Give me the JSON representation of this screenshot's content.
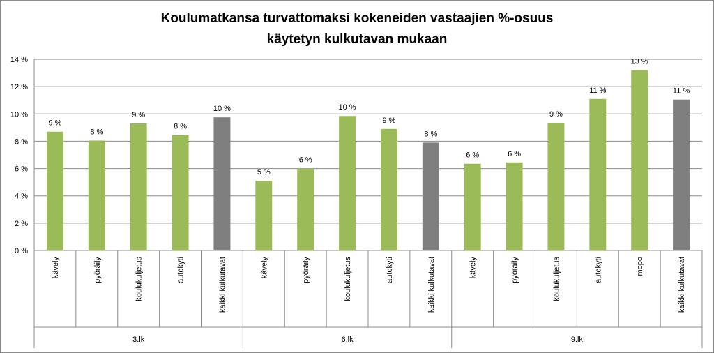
{
  "chart_data": {
    "type": "bar",
    "title_lines": [
      "Koulumatkansa turvattomaksi kokeneiden vastaajien %-osuus",
      "käytetyn kulkutavan mukaan"
    ],
    "xlabel": "",
    "ylabel": "",
    "ylim": [
      0,
      14
    ],
    "y_ticks": [
      "0 %",
      "2 %",
      "4 %",
      "6 %",
      "8 %",
      "10 %",
      "12 %",
      "14 %"
    ],
    "grid": true,
    "legend": "none",
    "colors": {
      "mode": "#9bbb59",
      "all": "#7f7f7f"
    },
    "groups": [
      {
        "name": "3.lk",
        "bars": [
          {
            "category": "kävely",
            "value": 8.7,
            "label": "9 %",
            "kind": "mode"
          },
          {
            "category": "pyöräily",
            "value": 8.05,
            "label": "8 %",
            "kind": "mode"
          },
          {
            "category": "koulukuljetus",
            "value": 9.3,
            "label": "9 %",
            "kind": "mode"
          },
          {
            "category": "autokyti",
            "value": 8.45,
            "label": "8 %",
            "kind": "mode"
          },
          {
            "category": "kaikki kulkutavat",
            "value": 9.75,
            "label": "10 %",
            "kind": "all"
          }
        ]
      },
      {
        "name": "6.lk",
        "bars": [
          {
            "category": "kävely",
            "value": 5.1,
            "label": "5 %",
            "kind": "mode"
          },
          {
            "category": "pyöräily",
            "value": 6.0,
            "label": "6 %",
            "kind": "mode"
          },
          {
            "category": "koulukuljetus",
            "value": 9.85,
            "label": "10 %",
            "kind": "mode"
          },
          {
            "category": "autokyti",
            "value": 8.9,
            "label": "9 %",
            "kind": "mode"
          },
          {
            "category": "kaikki kulkutavat",
            "value": 7.9,
            "label": "8 %",
            "kind": "all"
          }
        ]
      },
      {
        "name": "9.lk",
        "bars": [
          {
            "category": "kävely",
            "value": 6.35,
            "label": "6 %",
            "kind": "mode"
          },
          {
            "category": "pyöräily",
            "value": 6.45,
            "label": "6 %",
            "kind": "mode"
          },
          {
            "category": "koulukuljetus",
            "value": 9.35,
            "label": "9 %",
            "kind": "mode"
          },
          {
            "category": "autokyti",
            "value": 11.1,
            "label": "11 %",
            "kind": "mode"
          },
          {
            "category": "mopo",
            "value": 13.2,
            "label": "13 %",
            "kind": "mode"
          },
          {
            "category": "kaikki kulkutavat",
            "value": 11.05,
            "label": "11 %",
            "kind": "all"
          }
        ]
      }
    ]
  }
}
